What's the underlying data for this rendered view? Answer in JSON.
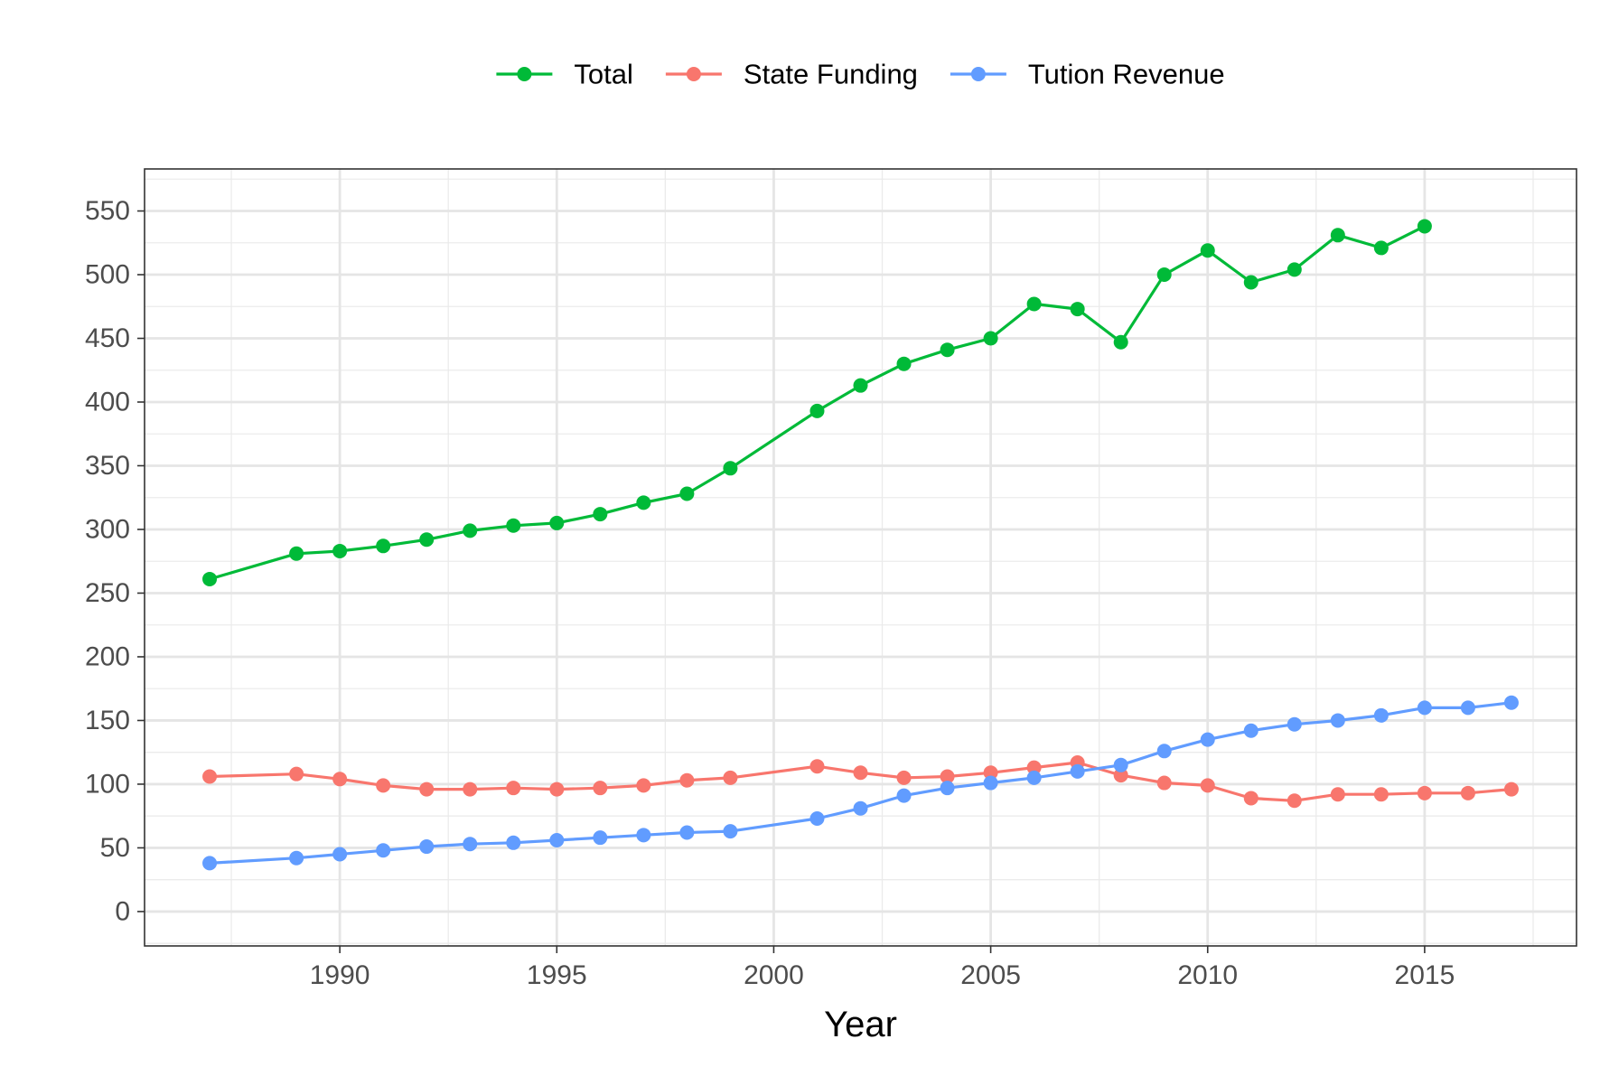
{
  "chart_data": {
    "type": "line",
    "title": "",
    "xlabel": "Year",
    "ylabel": "",
    "xlim": [
      1985.5,
      2018.5
    ],
    "ylim": [
      -27,
      583
    ],
    "x_ticks": [
      1990,
      1995,
      2000,
      2005,
      2010,
      2015
    ],
    "y_ticks": [
      0,
      50,
      100,
      150,
      200,
      250,
      300,
      350,
      400,
      450,
      500,
      550
    ],
    "grid": true,
    "legend_position": "top",
    "series": [
      {
        "name": "Total",
        "color": "#00BA38",
        "points": [
          [
            1987,
            261
          ],
          [
            1989,
            281
          ],
          [
            1990,
            283
          ],
          [
            1991,
            287
          ],
          [
            1992,
            292
          ],
          [
            1993,
            299
          ],
          [
            1994,
            303
          ],
          [
            1995,
            305
          ],
          [
            1996,
            312
          ],
          [
            1997,
            321
          ],
          [
            1998,
            328
          ],
          [
            1999,
            348
          ],
          [
            2001,
            393
          ],
          [
            2002,
            413
          ],
          [
            2003,
            430
          ],
          [
            2004,
            441
          ],
          [
            2005,
            450
          ],
          [
            2006,
            477
          ],
          [
            2007,
            473
          ],
          [
            2008,
            447
          ],
          [
            2009,
            500
          ],
          [
            2010,
            519
          ],
          [
            2011,
            494
          ],
          [
            2012,
            504
          ],
          [
            2013,
            531
          ],
          [
            2014,
            521
          ],
          [
            2015,
            538
          ]
        ]
      },
      {
        "name": "State Funding",
        "color": "#F8766D",
        "points": [
          [
            1987,
            106
          ],
          [
            1989,
            108
          ],
          [
            1990,
            104
          ],
          [
            1991,
            99
          ],
          [
            1992,
            96
          ],
          [
            1993,
            96
          ],
          [
            1994,
            97
          ],
          [
            1995,
            96
          ],
          [
            1996,
            97
          ],
          [
            1997,
            99
          ],
          [
            1998,
            103
          ],
          [
            1999,
            105
          ],
          [
            2001,
            114
          ],
          [
            2002,
            109
          ],
          [
            2003,
            105
          ],
          [
            2004,
            106
          ],
          [
            2005,
            109
          ],
          [
            2006,
            113
          ],
          [
            2007,
            117
          ],
          [
            2008,
            107
          ],
          [
            2009,
            101
          ],
          [
            2010,
            99
          ],
          [
            2011,
            89
          ],
          [
            2012,
            87
          ],
          [
            2013,
            92
          ],
          [
            2014,
            92
          ],
          [
            2015,
            93
          ],
          [
            2016,
            93
          ],
          [
            2017,
            96
          ]
        ]
      },
      {
        "name": "Tution Revenue",
        "color": "#619CFF",
        "points": [
          [
            1987,
            38
          ],
          [
            1989,
            42
          ],
          [
            1990,
            45
          ],
          [
            1991,
            48
          ],
          [
            1992,
            51
          ],
          [
            1993,
            53
          ],
          [
            1994,
            54
          ],
          [
            1995,
            56
          ],
          [
            1996,
            58
          ],
          [
            1997,
            60
          ],
          [
            1998,
            62
          ],
          [
            1999,
            63
          ],
          [
            2001,
            73
          ],
          [
            2002,
            81
          ],
          [
            2003,
            91
          ],
          [
            2004,
            97
          ],
          [
            2005,
            101
          ],
          [
            2006,
            105
          ],
          [
            2007,
            110
          ],
          [
            2008,
            115
          ],
          [
            2009,
            126
          ],
          [
            2010,
            135
          ],
          [
            2011,
            142
          ],
          [
            2012,
            147
          ],
          [
            2013,
            150
          ],
          [
            2014,
            154
          ],
          [
            2015,
            160
          ],
          [
            2016,
            160
          ],
          [
            2017,
            164
          ]
        ]
      }
    ]
  }
}
